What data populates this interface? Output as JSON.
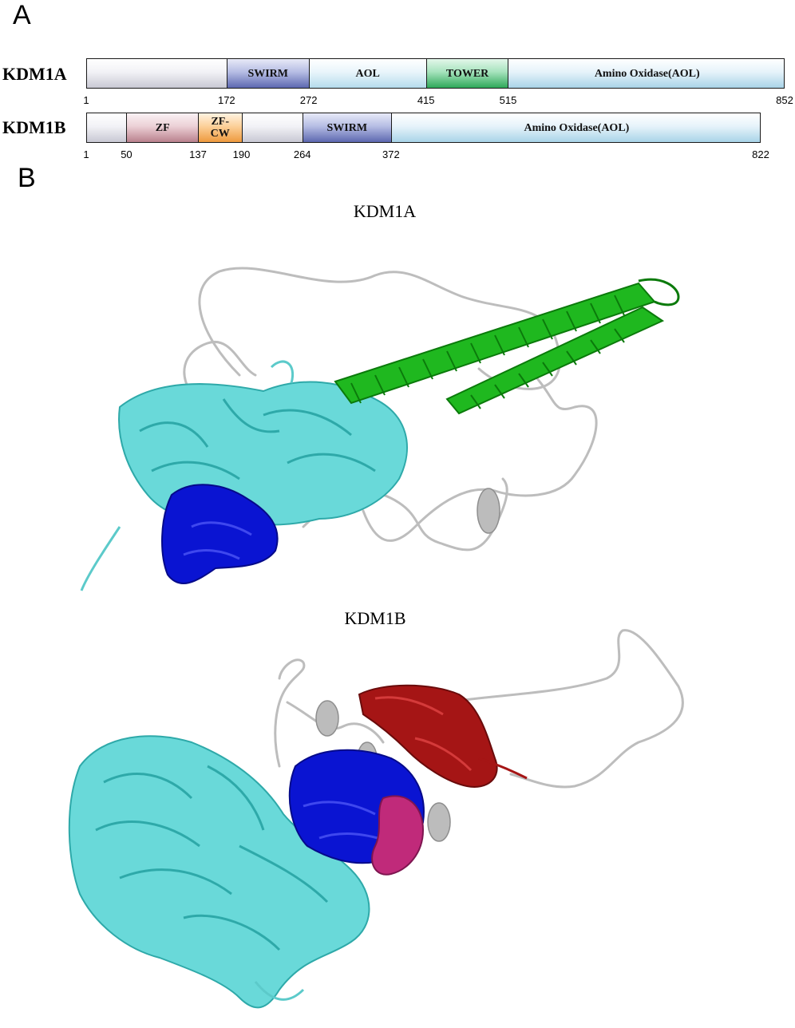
{
  "panel_a": {
    "letter": "A",
    "proteins": [
      {
        "name": "KDM1A",
        "domains": [
          {
            "label": "",
            "start": 1,
            "end": 172,
            "style": "plain"
          },
          {
            "label": "SWIRM",
            "start": 172,
            "end": 272,
            "style": "swirm"
          },
          {
            "label": "AOL",
            "start": 272,
            "end": 415,
            "style": "aol"
          },
          {
            "label": "TOWER",
            "start": 415,
            "end": 515,
            "style": "tower"
          },
          {
            "label": "Amino Oxidase(AOL)",
            "start": 515,
            "end": 852,
            "style": "amino"
          }
        ],
        "ticks": [
          "1",
          "172",
          "272",
          "415",
          "515",
          "852"
        ]
      },
      {
        "name": "KDM1B",
        "domains": [
          {
            "label": "",
            "start": 1,
            "end": 50,
            "style": "plain"
          },
          {
            "label": "ZF",
            "start": 50,
            "end": 137,
            "style": "zf"
          },
          {
            "label": "ZF-\nCW",
            "start": 137,
            "end": 190,
            "style": "zfcw"
          },
          {
            "label": "",
            "start": 190,
            "end": 264,
            "style": "plain"
          },
          {
            "label": "SWIRM",
            "start": 264,
            "end": 372,
            "style": "swirm"
          },
          {
            "label": "Amino Oxidase(AOL)",
            "start": 372,
            "end": 822,
            "style": "amino"
          }
        ],
        "ticks": [
          "1",
          "50",
          "137",
          "190",
          "264",
          "372",
          "822"
        ]
      }
    ]
  },
  "panel_b": {
    "letter": "B",
    "structures": [
      {
        "title": "KDM1A"
      },
      {
        "title": "KDM1B"
      }
    ]
  },
  "colors": {
    "cyan_domain": "#66dada",
    "swirm_blue": "#0a14d2",
    "tower_green": "#1fb81f",
    "zf_red": "#a51515",
    "zfcw_magenta": "#c02a7a",
    "loop_gray": "#c4c4c4"
  }
}
